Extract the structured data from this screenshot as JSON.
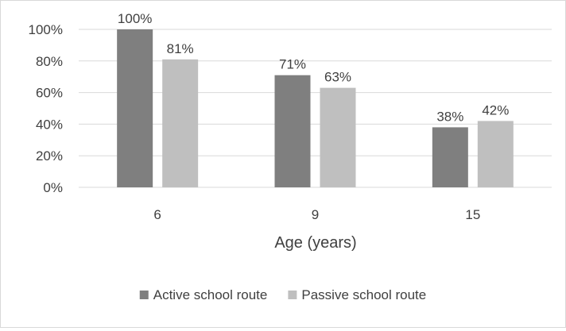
{
  "chart_data": {
    "type": "bar",
    "title": "",
    "xlabel": "Age (years)",
    "ylabel": "",
    "categories": [
      "6",
      "9",
      "15"
    ],
    "series": [
      {
        "name": "Active school route",
        "values": [
          100,
          71,
          38
        ],
        "labels": [
          "100%",
          "71%",
          "38%"
        ],
        "color": "#7f7f7f"
      },
      {
        "name": "Passive school route",
        "values": [
          81,
          63,
          42
        ],
        "labels": [
          "81%",
          "63%",
          "42%"
        ],
        "color": "#bfbfbf"
      }
    ],
    "ylim": [
      0,
      100
    ],
    "yticks": [
      0,
      20,
      40,
      60,
      80,
      100
    ],
    "ytick_labels": [
      "0%",
      "20%",
      "40%",
      "60%",
      "80%",
      "100%"
    ],
    "grid": true,
    "gridline_color": "#d9d9d9",
    "legend": "bottom"
  }
}
